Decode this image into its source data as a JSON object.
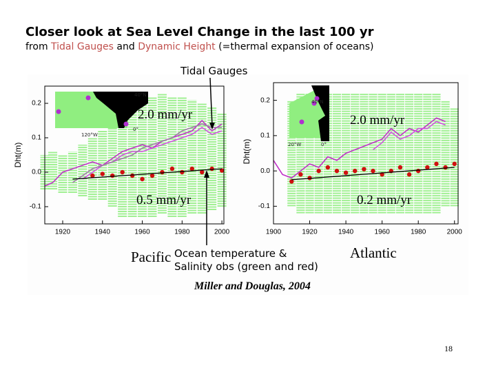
{
  "slide": {
    "title": "Closer look at Sea Level Change in the last 100 yr",
    "subtitle": [
      "from ",
      "Tidal Gauges",
      " and ",
      "Dynamic Height",
      " (=thermal expansion of oceans)"
    ],
    "callout_top": "Tidal Gauges",
    "callout_bottom": [
      "Ocean temperature &",
      "Salinity obs (green and red)"
    ],
    "caption": "Miller and Douglas, 2004",
    "page_number": "18"
  },
  "chart_data": [
    {
      "type": "line",
      "region": "Pacific",
      "ylabel": "Dht(m)",
      "xlim": [
        1911,
        2001
      ],
      "xticks": [
        1920,
        1940,
        1960,
        1980,
        2000
      ],
      "ylim": [
        -0.15,
        0.25
      ],
      "yticks": [
        -0.1,
        {
          "value": 0,
          "label": "0.0"
        },
        0.1,
        0.2
      ],
      "annotations": [
        "2.0 mm/yr",
        "0.5 mm/yr"
      ],
      "inset_labels": [
        "40°N",
        "120°W",
        "0°"
      ],
      "x": [
        1911,
        1915,
        1920,
        1925,
        1930,
        1935,
        1940,
        1945,
        1950,
        1955,
        1960,
        1965,
        1970,
        1975,
        1980,
        1985,
        1990,
        1995,
        2000
      ],
      "band": {
        "color": "#90ee80",
        "lower": [
          -0.05,
          -0.05,
          -0.06,
          -0.06,
          -0.07,
          -0.08,
          -0.08,
          -0.1,
          -0.13,
          -0.13,
          -0.13,
          -0.13,
          -0.12,
          -0.13,
          -0.13,
          -0.12,
          -0.12,
          -0.11,
          -0.1
        ],
        "upper": [
          0.05,
          0.06,
          0.05,
          0.06,
          0.08,
          0.1,
          0.12,
          0.15,
          0.2,
          0.2,
          0.21,
          0.22,
          0.23,
          0.22,
          0.22,
          0.21,
          0.2,
          0.19,
          0.17
        ]
      },
      "series": [
        {
          "mode": "line",
          "color": "#c030c8",
          "values": [
            -0.04,
            -0.03,
            0.0,
            0.01,
            0.02,
            0.03,
            0.02,
            0.04,
            0.06,
            0.07,
            0.08,
            0.07,
            0.09,
            0.1,
            0.11,
            0.12,
            0.15,
            0.12,
            0.14
          ]
        },
        {
          "mode": "line",
          "color": "#d050e0",
          "values": [
            null,
            null,
            null,
            null,
            -0.02,
            0.0,
            0.02,
            0.03,
            0.05,
            0.06,
            0.06,
            0.07,
            0.08,
            0.09,
            0.1,
            0.11,
            0.13,
            0.11,
            0.12
          ]
        },
        {
          "mode": "line",
          "color": "#a07aa8",
          "values": [
            null,
            null,
            null,
            -0.03,
            -0.01,
            0.01,
            0.02,
            0.03,
            0.04,
            0.05,
            0.07,
            0.08,
            0.09,
            0.1,
            0.12,
            0.13,
            0.14,
            0.13,
            0.13
          ]
        },
        {
          "mode": "markers",
          "color": "#d01010",
          "values": [
            null,
            null,
            null,
            null,
            null,
            -0.01,
            -0.005,
            -0.01,
            0.0,
            -0.01,
            -0.02,
            -0.01,
            0.0,
            0.01,
            0.0,
            0.01,
            0.0,
            0.01,
            0.005
          ]
        },
        {
          "mode": "line",
          "color": "#000000",
          "x": [
            1925,
            2000
          ],
          "values": [
            -0.02,
            0.01
          ]
        }
      ]
    },
    {
      "type": "line",
      "region": "Atlantic",
      "ylabel": "Dht(m)",
      "xlim": [
        1900,
        2002
      ],
      "xticks": [
        1900,
        1920,
        1940,
        1960,
        1980,
        2000
      ],
      "ylim": [
        -0.15,
        0.25
      ],
      "yticks": [
        -0.1,
        {
          "value": 0,
          "label": "0.0"
        },
        0.1,
        0.2
      ],
      "annotations": [
        "2.0 mm/yr",
        "0.2 mm/yr"
      ],
      "inset_labels": [
        "40°N",
        "20°W",
        "0°"
      ],
      "x": [
        1900,
        1905,
        1910,
        1915,
        1920,
        1925,
        1930,
        1935,
        1940,
        1945,
        1950,
        1955,
        1960,
        1965,
        1970,
        1975,
        1980,
        1985,
        1990,
        1995,
        2000
      ],
      "band": {
        "color": "#90ee80",
        "lower": [
          null,
          null,
          -0.1,
          -0.12,
          -0.12,
          -0.12,
          -0.12,
          -0.12,
          -0.12,
          -0.12,
          -0.12,
          -0.12,
          -0.12,
          -0.12,
          -0.12,
          -0.12,
          -0.12,
          -0.12,
          -0.12,
          -0.1,
          -0.1
        ],
        "upper": [
          null,
          null,
          0.2,
          0.22,
          0.22,
          0.2,
          0.22,
          0.22,
          0.22,
          0.22,
          0.22,
          0.22,
          0.22,
          0.22,
          0.22,
          0.22,
          0.22,
          0.22,
          0.22,
          0.2,
          0.18
        ]
      },
      "series": [
        {
          "mode": "line",
          "color": "#c030c8",
          "values": [
            0.03,
            -0.01,
            -0.02,
            0.0,
            0.02,
            0.01,
            0.04,
            0.03,
            0.05,
            0.06,
            0.07,
            0.08,
            0.09,
            0.12,
            0.1,
            0.12,
            0.11,
            0.13,
            0.15,
            0.14,
            null
          ]
        },
        {
          "mode": "line",
          "color": "#d050e0",
          "values": [
            null,
            null,
            null,
            null,
            null,
            null,
            null,
            null,
            null,
            null,
            null,
            0.06,
            0.08,
            0.11,
            0.09,
            0.1,
            0.12,
            0.12,
            0.14,
            0.13,
            null
          ]
        },
        {
          "mode": "markers",
          "color": "#d01010",
          "values": [
            null,
            null,
            -0.03,
            -0.01,
            -0.02,
            0.0,
            0.01,
            0.0,
            -0.005,
            0.0,
            0.005,
            0.0,
            -0.01,
            0.0,
            0.01,
            -0.01,
            0.0,
            0.01,
            0.02,
            0.01,
            0.02
          ]
        },
        {
          "mode": "line",
          "color": "#000000",
          "x": [
            1910,
            2000
          ],
          "values": [
            -0.025,
            0.01
          ]
        }
      ]
    }
  ]
}
